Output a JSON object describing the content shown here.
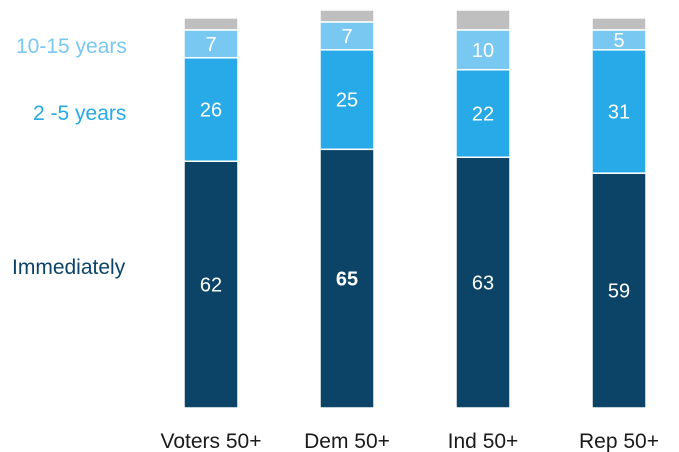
{
  "chart_data": {
    "type": "bar",
    "stacked": true,
    "categories": [
      "Voters 50+",
      "Dem 50+",
      "Ind 50+",
      "Rep 50+"
    ],
    "series": [
      {
        "name": "Immediately",
        "values": [
          62,
          65,
          63,
          59
        ],
        "color": "#0b4466",
        "label_color": "#ffffff",
        "bold": [
          false,
          true,
          false,
          false
        ]
      },
      {
        "name": "2 -5 years",
        "values": [
          26,
          25,
          22,
          31
        ],
        "color": "#28a9e8",
        "label_color": "#ffffff"
      },
      {
        "name": "10-15 years",
        "values": [
          7,
          7,
          10,
          5
        ],
        "color": "#79c8f2",
        "label_color": "#ffffff"
      },
      {
        "name": "",
        "values": [
          3,
          3,
          5,
          3
        ],
        "color": "#bfbfbf",
        "label_color": "#bfbfbf",
        "hide_labels": true
      }
    ],
    "ylim": [
      0,
      100
    ],
    "grid": false,
    "legend": "left, beside bars",
    "legend_colors": [
      "#0b4466",
      "#28a9e8",
      "#79c8f2"
    ]
  }
}
